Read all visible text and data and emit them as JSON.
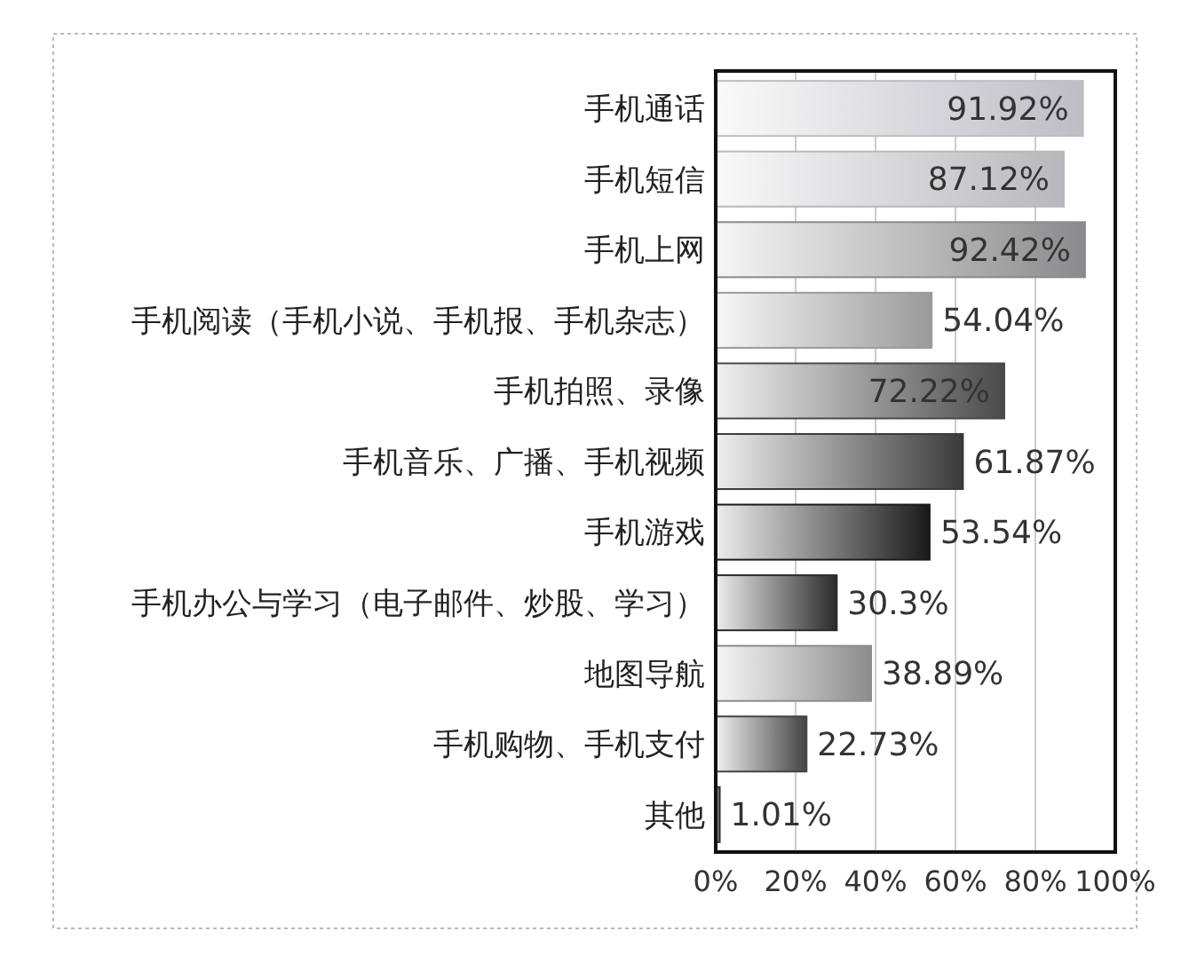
{
  "chart_data": {
    "type": "bar",
    "orientation": "horizontal",
    "categories": [
      "手机通话",
      "手机短信",
      "手机上网",
      "手机阅读（手机小说、手机报、手机杂志）",
      "手机拍照、录像",
      "手机音乐、广播、手机视频",
      "手机游戏",
      "手机办公与学习（电子邮件、炒股、学习）",
      "地图导航",
      "手机购物、手机支付",
      "其他"
    ],
    "values": [
      91.92,
      87.12,
      92.42,
      54.04,
      72.22,
      61.87,
      53.54,
      30.3,
      38.89,
      22.73,
      1.01
    ],
    "colors": [
      "#bdbdc4",
      "#b8b8bc",
      "#8a8a8c",
      "#9a9a9a",
      "#4a4a4a",
      "#3a3a3a",
      "#1a1a1a",
      "#2a2a2a",
      "#8c8c8c",
      "#444444",
      "#333333"
    ],
    "value_labels": [
      "91.92%",
      "87.12%",
      "92.42%",
      "54.04%",
      "72.22%",
      "61.87%",
      "53.54%",
      "30.3%",
      "38.89%",
      "22.73%",
      "1.01%"
    ],
    "xlim": [
      0,
      100
    ],
    "xticks": [
      {
        "value": 0,
        "label": "0%"
      },
      {
        "value": 20,
        "label": "20%"
      },
      {
        "value": 40,
        "label": "40%"
      },
      {
        "value": 60,
        "label": "60%"
      },
      {
        "value": 80,
        "label": "80%"
      },
      {
        "value": 100,
        "label": "100%"
      }
    ],
    "grid": "x"
  }
}
